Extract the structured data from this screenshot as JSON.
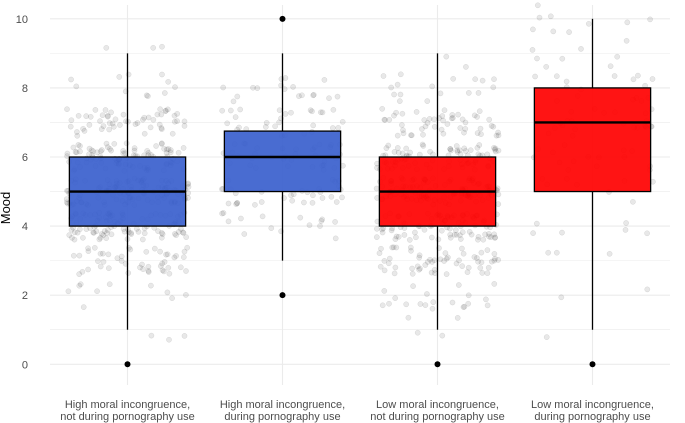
{
  "chart_data": {
    "type": "boxplot",
    "ylabel": "Mood",
    "xlabel": "",
    "ylim": [
      -0.6,
      10.4
    ],
    "yticks": [
      0,
      2,
      4,
      6,
      8,
      10
    ],
    "grid": true,
    "categories": [
      [
        "High moral incongruence,",
        "not during pornography use"
      ],
      [
        "High moral incongruence,",
        "during pornography use"
      ],
      [
        "Low moral incongruence,",
        "not during pornography use"
      ],
      [
        "Low moral incongruence,",
        "during pornography use"
      ]
    ],
    "boxes": [
      {
        "q1": 4,
        "median": 5,
        "q3": 6,
        "whisker_low": 1,
        "whisker_high": 9,
        "outliers": [
          0
        ],
        "fill": "#3a5fcd"
      },
      {
        "q1": 5,
        "median": 6,
        "q3": 6.75,
        "whisker_low": 3,
        "whisker_high": 9,
        "outliers": [
          2,
          10
        ],
        "fill": "#3a5fcd"
      },
      {
        "q1": 4,
        "median": 5,
        "q3": 6,
        "whisker_low": 1,
        "whisker_high": 9,
        "outliers": [
          0
        ],
        "fill": "#ff0000"
      },
      {
        "q1": 5,
        "median": 7,
        "q3": 8,
        "whisker_low": 1,
        "whisker_high": 10,
        "outliers": [
          0
        ],
        "fill": "#ff0000"
      }
    ],
    "jitter_point_counts": [
      420,
      130,
      420,
      90
    ],
    "colors": {
      "high_moral_incongruence": "#3a5fcd",
      "low_moral_incongruence": "#ff0000",
      "grid": "#ebebeb",
      "points": "#000000"
    }
  }
}
